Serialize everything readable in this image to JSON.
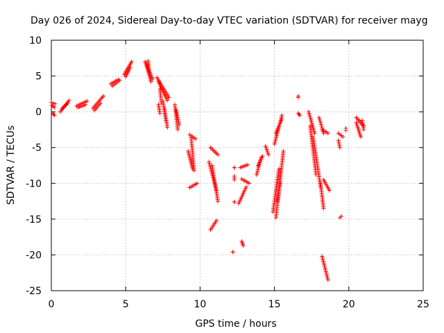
{
  "chart_data": {
    "type": "scatter",
    "title": "Day 026 of 2024, Sidereal Day-to-day VTEC variation (SDTVAR) for receiver mayg",
    "xlabel": "GPS time / hours",
    "ylabel": "SDTVAR / TECUs",
    "xlim": [
      0,
      25
    ],
    "ylim": [
      -25,
      10
    ],
    "xticks": [
      0,
      5,
      10,
      15,
      20,
      25
    ],
    "yticks": [
      -25,
      -20,
      -15,
      -10,
      -5,
      0,
      5,
      10
    ],
    "xtick_labels": [
      "0",
      "5",
      "10",
      "15",
      "20",
      "25"
    ],
    "ytick_labels": [
      "-25",
      "-20",
      "-15",
      "-10",
      "-5",
      "0",
      "5",
      "10"
    ],
    "grid": true,
    "marker": "+",
    "color": "#ff0000",
    "series": [
      {
        "name": "SDTVAR",
        "segments": [
          [
            0.0,
            1.3,
            0.25,
            1.1
          ],
          [
            0.05,
            0.9,
            0.2,
            0.6
          ],
          [
            0.1,
            -0.2,
            0.2,
            -0.5
          ],
          [
            0.6,
            0.0,
            1.2,
            1.6
          ],
          [
            0.7,
            0.4,
            1.1,
            1.2
          ],
          [
            1.7,
            0.8,
            2.4,
            1.5
          ],
          [
            1.8,
            0.6,
            2.3,
            1.0
          ],
          [
            2.8,
            0.5,
            3.5,
            2.2
          ],
          [
            2.9,
            0.2,
            3.3,
            1.2
          ],
          [
            4.0,
            3.9,
            4.5,
            4.5
          ],
          [
            4.1,
            3.6,
            4.6,
            4.4
          ],
          [
            4.9,
            5.2,
            5.4,
            7.0
          ],
          [
            5.0,
            4.9,
            5.3,
            6.2
          ],
          [
            6.3,
            7.0,
            6.8,
            4.6
          ],
          [
            6.4,
            6.5,
            6.7,
            4.2
          ],
          [
            6.5,
            7.1,
            6.6,
            5.5
          ],
          [
            7.1,
            4.8,
            7.9,
            2.0
          ],
          [
            7.2,
            4.2,
            7.8,
            1.6
          ],
          [
            7.3,
            3.2,
            7.4,
            1.2
          ],
          [
            7.2,
            1.0,
            7.3,
            -0.2
          ],
          [
            7.5,
            1.5,
            7.7,
            -1.2
          ],
          [
            7.6,
            0.5,
            7.8,
            -2.2
          ],
          [
            8.3,
            1.0,
            8.5,
            -2.5
          ],
          [
            8.4,
            0.2,
            8.6,
            -1.8
          ],
          [
            9.3,
            -3.2,
            9.7,
            -3.8
          ],
          [
            9.4,
            -3.6,
            9.6,
            -8.2
          ],
          [
            9.2,
            -5.5,
            9.5,
            -8.0
          ],
          [
            9.3,
            -10.6,
            9.8,
            -10.0
          ],
          [
            10.7,
            -5.0,
            11.2,
            -6.0
          ],
          [
            10.6,
            -7.0,
            11.1,
            -11.0
          ],
          [
            10.8,
            -7.5,
            11.2,
            -12.5
          ],
          [
            10.7,
            -16.5,
            11.1,
            -15.2
          ],
          [
            12.3,
            -7.8,
            12.3,
            -7.8
          ],
          [
            12.3,
            -9.0,
            12.3,
            -9.5
          ],
          [
            12.3,
            -12.6,
            12.3,
            -12.6
          ],
          [
            12.2,
            -19.6,
            12.2,
            -19.6
          ],
          [
            12.7,
            -7.8,
            13.2,
            -7.4
          ],
          [
            12.8,
            -9.4,
            13.3,
            -10.0
          ],
          [
            12.6,
            -12.8,
            13.1,
            -10.5
          ],
          [
            12.8,
            -18.1,
            12.9,
            -18.7
          ],
          [
            13.8,
            -8.8,
            14.1,
            -6.4
          ],
          [
            13.9,
            -7.5,
            14.2,
            -6.2
          ],
          [
            14.4,
            -4.8,
            14.6,
            -6.0
          ],
          [
            15.0,
            -4.5,
            15.5,
            -0.5
          ],
          [
            15.1,
            -3.0,
            15.5,
            -1.0
          ],
          [
            14.9,
            -14.0,
            15.3,
            -8.0
          ],
          [
            15.1,
            -14.8,
            15.6,
            -5.5
          ],
          [
            15.2,
            -12.5,
            15.4,
            -10.0
          ],
          [
            16.6,
            2.2,
            16.6,
            2.0
          ],
          [
            16.6,
            -0.2,
            16.7,
            -0.5
          ],
          [
            17.3,
            0.0,
            17.7,
            -3.0
          ],
          [
            17.4,
            -2.0,
            17.8,
            -8.8
          ],
          [
            17.6,
            -3.5,
            18.1,
            -10.5
          ],
          [
            18.0,
            -0.8,
            18.3,
            -3.0
          ],
          [
            18.2,
            -2.5,
            18.6,
            -3.0
          ],
          [
            18.3,
            -9.5,
            18.7,
            -11.0
          ],
          [
            18.1,
            -10.0,
            18.3,
            -13.5
          ],
          [
            18.2,
            -20.2,
            18.6,
            -23.5
          ],
          [
            19.3,
            -3.0,
            19.6,
            -3.5
          ],
          [
            19.3,
            -4.0,
            19.4,
            -5.0
          ],
          [
            19.4,
            -14.8,
            19.5,
            -14.6
          ],
          [
            19.8,
            -2.3,
            19.8,
            -2.6
          ],
          [
            20.5,
            -0.8,
            21.0,
            -2.0
          ],
          [
            20.5,
            -1.5,
            20.8,
            -3.5
          ],
          [
            20.9,
            -1.2,
            21.0,
            -2.5
          ]
        ]
      }
    ]
  }
}
